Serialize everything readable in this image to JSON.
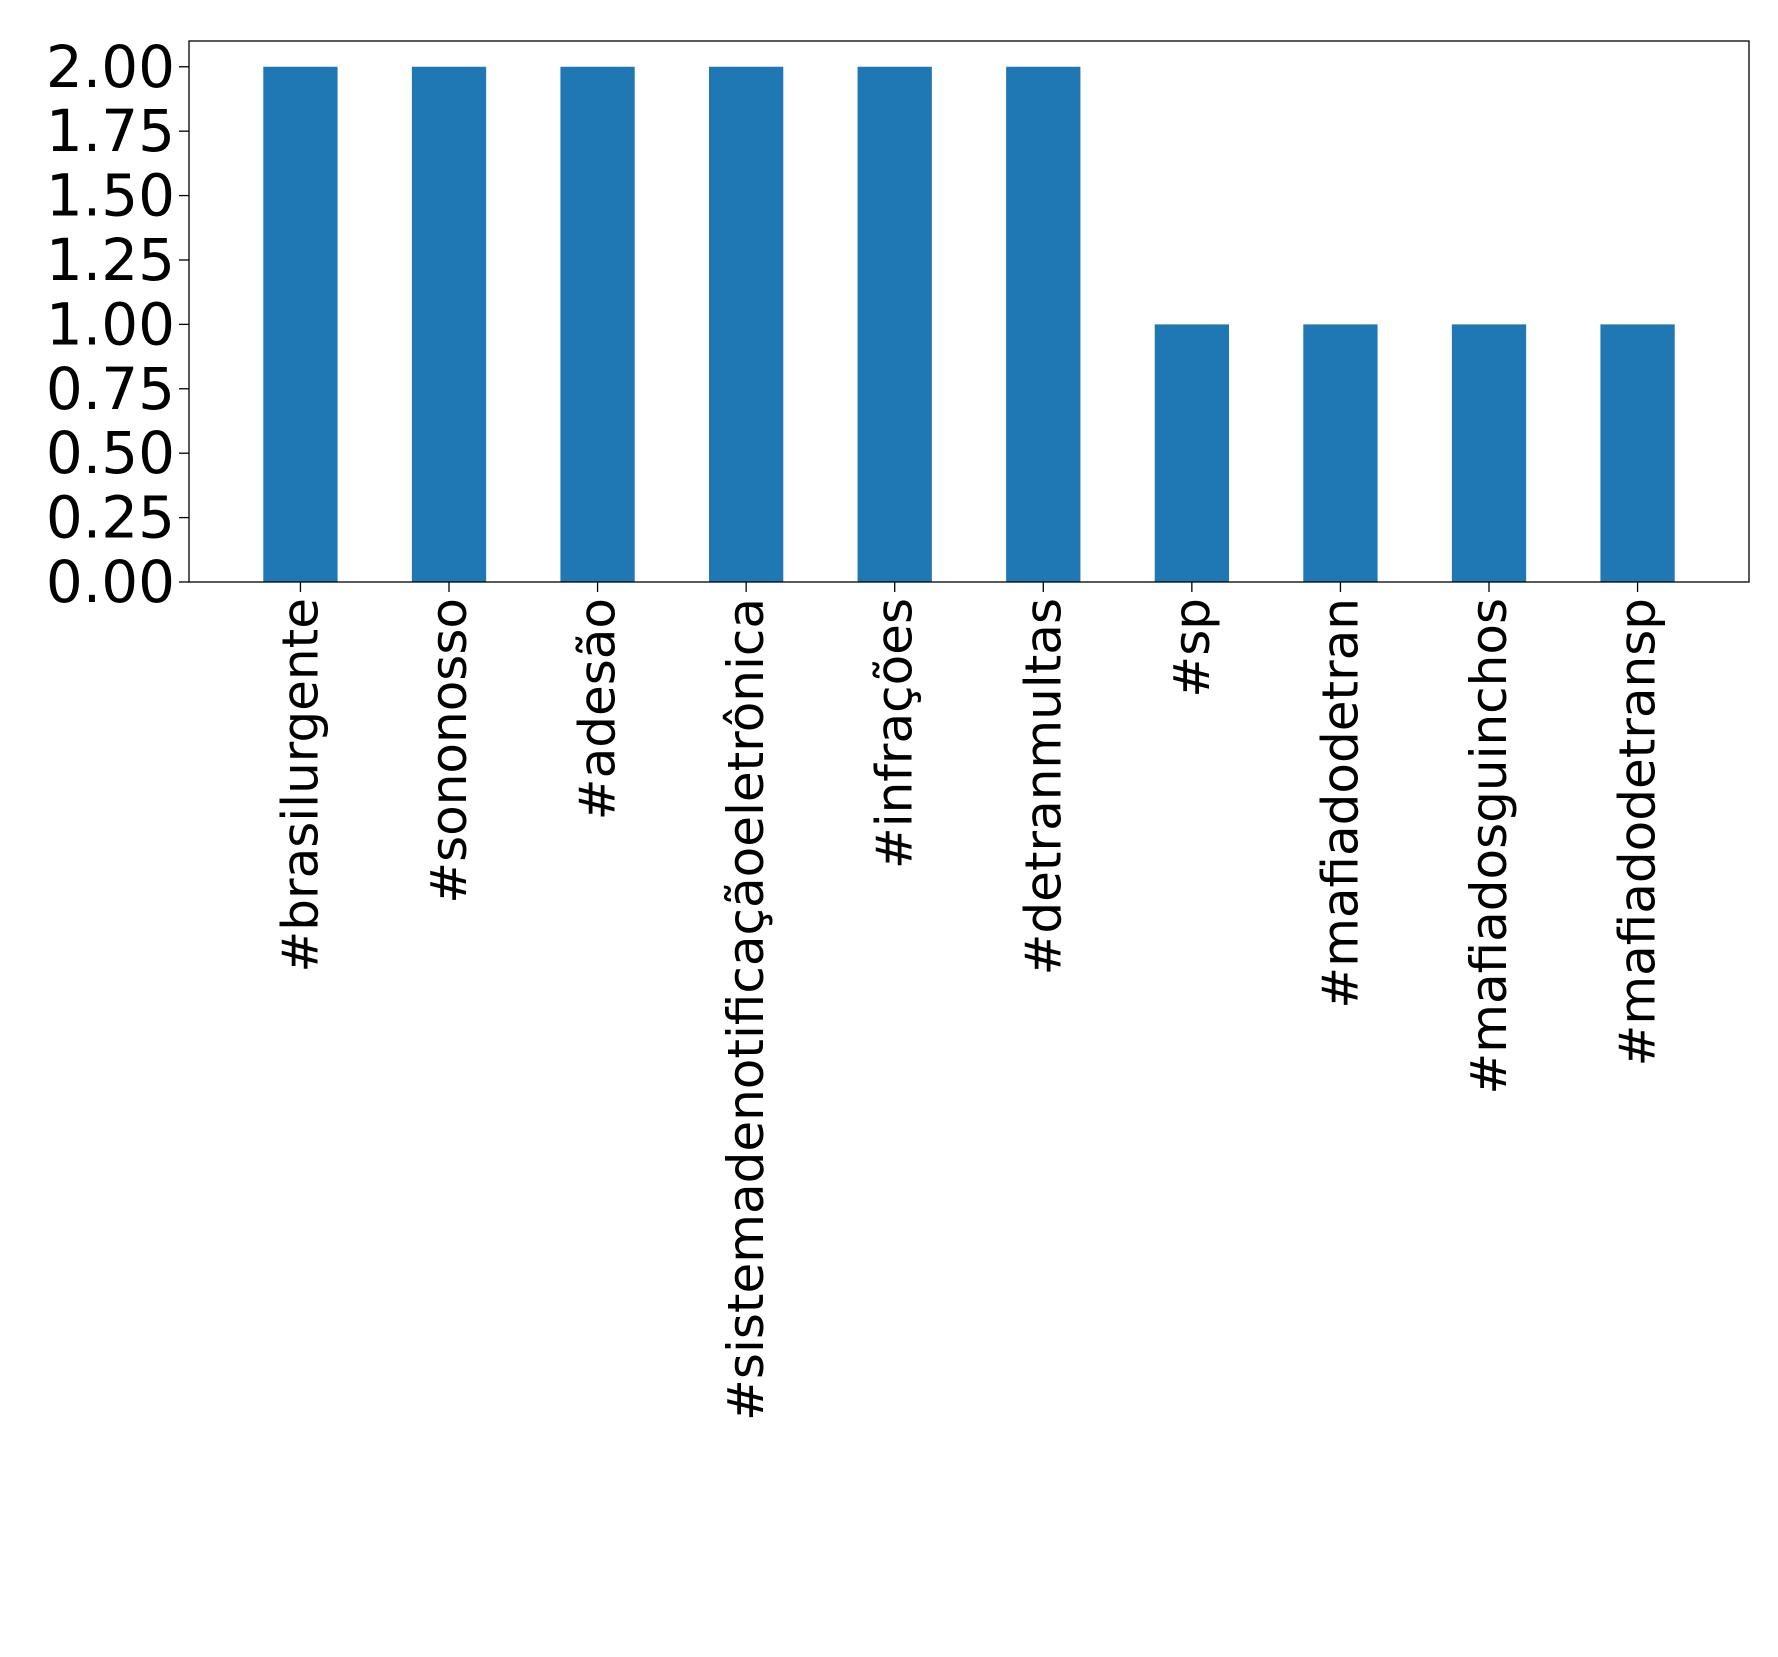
{
  "chart_data": {
    "type": "bar",
    "categories": [
      "#brasilurgente",
      "#sononosso",
      "#adesão",
      "#sistemadenotificaçãoeletrônica",
      "#infrações",
      "#detranmultas",
      "#sp",
      "#mafiadodetran",
      "#mafiadosguinchos",
      "#mafiadodetransp"
    ],
    "values": [
      2,
      2,
      2,
      2,
      2,
      2,
      1,
      1,
      1,
      1
    ],
    "ylim": [
      0,
      2.1
    ],
    "yticks": [
      "0.00",
      "0.25",
      "0.50",
      "0.75",
      "1.00",
      "1.25",
      "1.50",
      "1.75",
      "2.00"
    ],
    "title": "",
    "xlabel": "",
    "ylabel": "",
    "bar_color": "#1f77b4",
    "grid": false,
    "legend": "none"
  }
}
